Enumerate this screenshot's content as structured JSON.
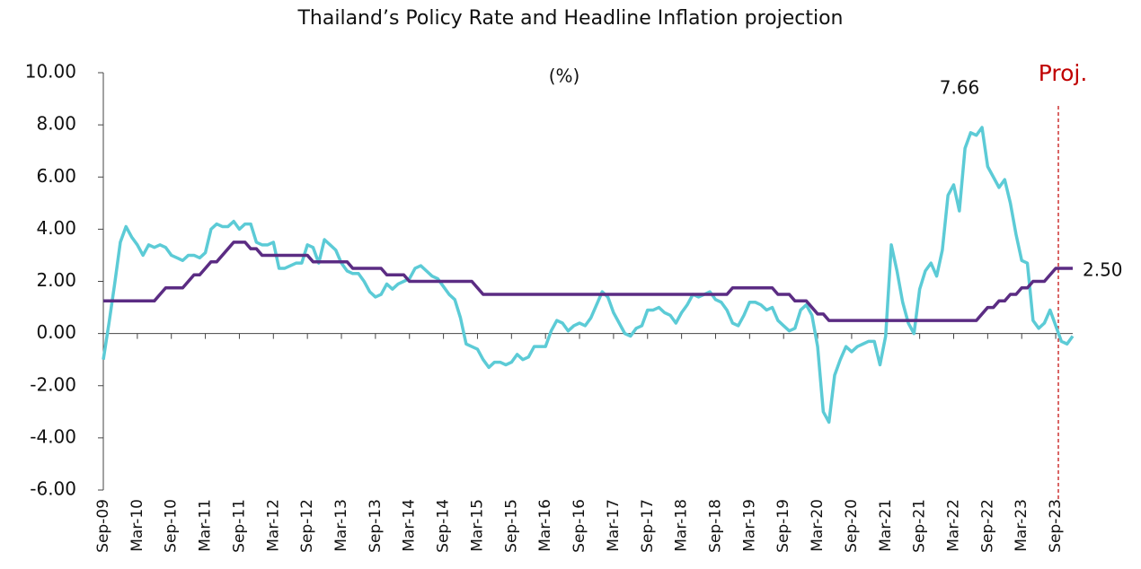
{
  "chart_data": {
    "type": "line",
    "title": "Thailand’s Policy Rate and Headline Inflation  projection",
    "unit_label": "(%)",
    "annotations": [
      {
        "text": "7.66"
      },
      {
        "text": "2.50"
      },
      {
        "text": "Proj.",
        "color": "#c00000"
      }
    ],
    "categories": [
      "Sep-09",
      null,
      null,
      null,
      null,
      null,
      "Mar-10",
      null,
      null,
      null,
      null,
      null,
      "Sep-10",
      null,
      null,
      null,
      null,
      null,
      "Mar-11",
      null,
      null,
      null,
      null,
      null,
      "Sep-11",
      null,
      null,
      null,
      null,
      null,
      "Mar-12",
      null,
      null,
      null,
      null,
      null,
      "Sep-12",
      null,
      null,
      null,
      null,
      null,
      "Mar-13",
      null,
      null,
      null,
      null,
      null,
      "Sep-13",
      null,
      null,
      null,
      null,
      null,
      "Mar-14",
      null,
      null,
      null,
      null,
      null,
      "Sep-14",
      null,
      null,
      null,
      null,
      null,
      "Mar-15",
      null,
      null,
      null,
      null,
      null,
      "Sep-15",
      null,
      null,
      null,
      null,
      null,
      "Mar-16",
      null,
      null,
      null,
      null,
      null,
      "Sep-16",
      null,
      null,
      null,
      null,
      null,
      "Mar-17",
      null,
      null,
      null,
      null,
      null,
      "Sep-17",
      null,
      null,
      null,
      null,
      null,
      "Mar-18",
      null,
      null,
      null,
      null,
      null,
      "Sep-18",
      null,
      null,
      null,
      null,
      null,
      "Mar-19",
      null,
      null,
      null,
      null,
      null,
      "Sep-19",
      null,
      null,
      null,
      null,
      null,
      "Mar-20",
      null,
      null,
      null,
      null,
      null,
      "Sep-20",
      null,
      null,
      null,
      null,
      null,
      "Mar-21",
      null,
      null,
      null,
      null,
      null,
      "Sep-21",
      null,
      null,
      null,
      null,
      null,
      "Mar-22",
      null,
      null,
      null,
      null,
      null,
      "Sep-22",
      null,
      null,
      null,
      null,
      null,
      "Mar-23",
      null,
      null,
      null,
      null,
      null,
      "Sep-23",
      null,
      null,
      null
    ],
    "series": [
      {
        "color": "#5ccbd6",
        "values": [
          -1.0,
          0.4,
          1.9,
          3.5,
          4.1,
          3.7,
          3.4,
          3.0,
          3.4,
          3.3,
          3.4,
          3.3,
          3.0,
          2.9,
          2.8,
          3.0,
          3.0,
          2.9,
          3.1,
          4.0,
          4.2,
          4.1,
          4.1,
          4.3,
          4.0,
          4.2,
          4.2,
          3.5,
          3.4,
          3.4,
          3.5,
          2.5,
          2.5,
          2.6,
          2.7,
          2.7,
          3.4,
          3.3,
          2.7,
          3.6,
          3.4,
          3.2,
          2.7,
          2.4,
          2.3,
          2.3,
          2.0,
          1.6,
          1.4,
          1.5,
          1.9,
          1.7,
          1.9,
          2.0,
          2.1,
          2.5,
          2.6,
          2.4,
          2.2,
          2.1,
          1.8,
          1.5,
          1.3,
          0.6,
          -0.4,
          -0.5,
          -0.6,
          -1.0,
          -1.3,
          -1.1,
          -1.1,
          -1.2,
          -1.1,
          -0.8,
          -1.0,
          -0.9,
          -0.5,
          -0.5,
          -0.5,
          0.1,
          0.5,
          0.4,
          0.1,
          0.3,
          0.4,
          0.3,
          0.6,
          1.1,
          1.6,
          1.4,
          0.8,
          0.4,
          0.0,
          -0.1,
          0.2,
          0.3,
          0.9,
          0.9,
          1.0,
          0.8,
          0.7,
          0.4,
          0.8,
          1.1,
          1.5,
          1.4,
          1.5,
          1.6,
          1.3,
          1.2,
          0.9,
          0.4,
          0.3,
          0.7,
          1.2,
          1.2,
          1.1,
          0.9,
          1.0,
          0.5,
          0.3,
          0.1,
          0.2,
          0.9,
          1.1,
          0.7,
          -0.5,
          -3.0,
          -3.4,
          -1.6,
          -1.0,
          -0.5,
          -0.7,
          -0.5,
          -0.4,
          -0.3,
          -0.3,
          -1.2,
          -0.1,
          3.4,
          2.4,
          1.2,
          0.4,
          0.0,
          1.7,
          2.4,
          2.7,
          2.2,
          3.2,
          5.3,
          5.7,
          4.7,
          7.1,
          7.7,
          7.6,
          7.9,
          6.4,
          6.0,
          5.6,
          5.9,
          5.0,
          3.8,
          2.8,
          2.7,
          0.5,
          0.2,
          0.4,
          0.9,
          0.3,
          -0.3,
          -0.4,
          -0.1
        ]
      },
      {
        "color": "#5b2c83",
        "values": [
          1.25,
          1.25,
          1.25,
          1.25,
          1.25,
          1.25,
          1.25,
          1.25,
          1.25,
          1.25,
          1.5,
          1.75,
          1.75,
          1.75,
          1.75,
          2.0,
          2.25,
          2.25,
          2.5,
          2.75,
          2.75,
          3.0,
          3.25,
          3.5,
          3.5,
          3.5,
          3.25,
          3.25,
          3.0,
          3.0,
          3.0,
          3.0,
          3.0,
          3.0,
          3.0,
          3.0,
          3.0,
          2.75,
          2.75,
          2.75,
          2.75,
          2.75,
          2.75,
          2.75,
          2.5,
          2.5,
          2.5,
          2.5,
          2.5,
          2.5,
          2.25,
          2.25,
          2.25,
          2.25,
          2.0,
          2.0,
          2.0,
          2.0,
          2.0,
          2.0,
          2.0,
          2.0,
          2.0,
          2.0,
          2.0,
          2.0,
          1.75,
          1.5,
          1.5,
          1.5,
          1.5,
          1.5,
          1.5,
          1.5,
          1.5,
          1.5,
          1.5,
          1.5,
          1.5,
          1.5,
          1.5,
          1.5,
          1.5,
          1.5,
          1.5,
          1.5,
          1.5,
          1.5,
          1.5,
          1.5,
          1.5,
          1.5,
          1.5,
          1.5,
          1.5,
          1.5,
          1.5,
          1.5,
          1.5,
          1.5,
          1.5,
          1.5,
          1.5,
          1.5,
          1.5,
          1.5,
          1.5,
          1.5,
          1.5,
          1.5,
          1.5,
          1.75,
          1.75,
          1.75,
          1.75,
          1.75,
          1.75,
          1.75,
          1.75,
          1.5,
          1.5,
          1.5,
          1.25,
          1.25,
          1.25,
          1.0,
          0.75,
          0.75,
          0.5,
          0.5,
          0.5,
          0.5,
          0.5,
          0.5,
          0.5,
          0.5,
          0.5,
          0.5,
          0.5,
          0.5,
          0.5,
          0.5,
          0.5,
          0.5,
          0.5,
          0.5,
          0.5,
          0.5,
          0.5,
          0.5,
          0.5,
          0.5,
          0.5,
          0.5,
          0.5,
          0.75,
          1.0,
          1.0,
          1.25,
          1.25,
          1.5,
          1.5,
          1.75,
          1.75,
          2.0,
          2.0,
          2.0,
          2.25,
          2.5,
          2.5,
          2.5,
          2.5
        ]
      }
    ],
    "ylim": [
      -6,
      10
    ],
    "yticks": [
      {
        "value": -6,
        "label": "-6.00"
      },
      {
        "value": -4,
        "label": "-4.00"
      },
      {
        "value": -2,
        "label": "-2.00"
      },
      {
        "value": 0,
        "label": "0.00"
      },
      {
        "value": 2,
        "label": "2.00"
      },
      {
        "value": 4,
        "label": "4.00"
      },
      {
        "value": 6,
        "label": "6.00"
      },
      {
        "value": 8,
        "label": "8.00"
      },
      {
        "value": 10,
        "label": "10.00"
      }
    ]
  }
}
